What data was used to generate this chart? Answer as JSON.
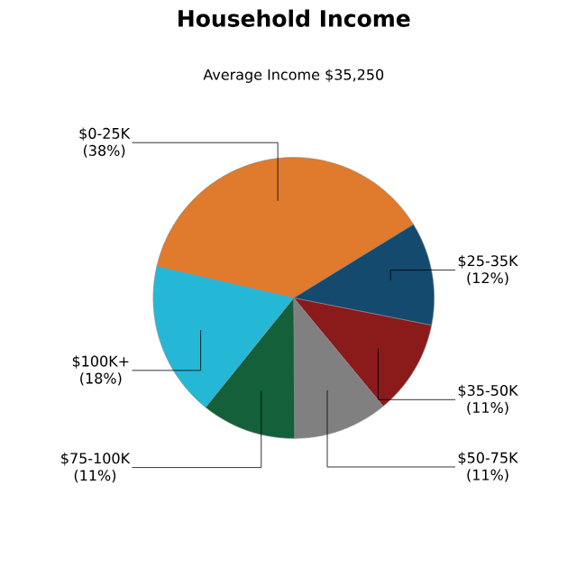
{
  "chart_data": {
    "type": "pie",
    "title": "Household Income",
    "subtitle": "Average Income  $35,250",
    "categories": [
      "$0-25K",
      "$25-35K",
      "$35-50K",
      "$50-75K",
      "$75-100K",
      "$100K+"
    ],
    "values": [
      38,
      12,
      11,
      11,
      11,
      18
    ],
    "value_labels": [
      "(38%)",
      "(12%)",
      "(11%)",
      "(11%)",
      "(11%)",
      "(18%)"
    ],
    "colors": [
      "#e07a2c",
      "#134a6e",
      "#8b1a1a",
      "#808080",
      "#13603a",
      "#25b8d6"
    ]
  }
}
